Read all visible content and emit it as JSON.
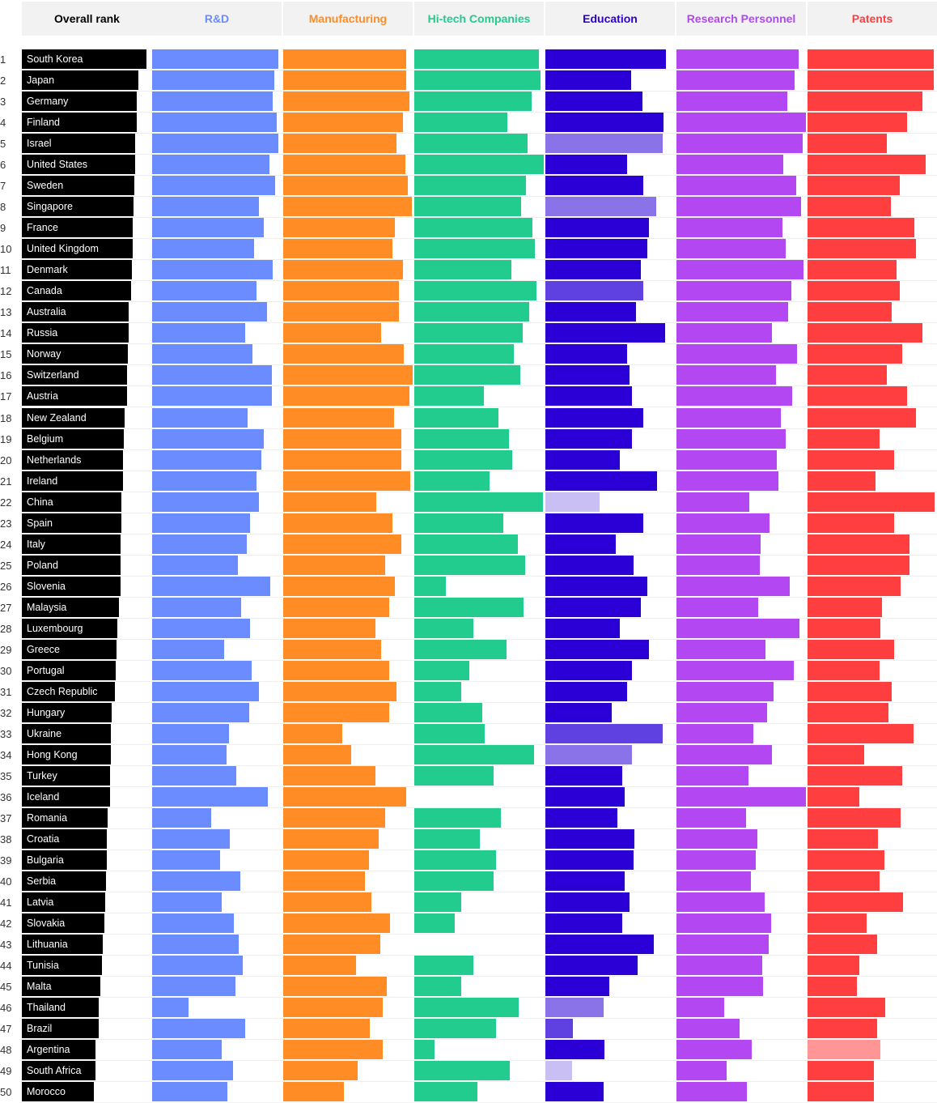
{
  "chart_data": {
    "type": "bar",
    "headers": [
      {
        "label": "Overall rank",
        "color": "#000000"
      },
      {
        "label": "R&D",
        "color": "#6a8cff"
      },
      {
        "label": "Manufacturing",
        "color": "#ff8c25"
      },
      {
        "label": "Hi-tech Companies",
        "color": "#22cc8f"
      },
      {
        "label": "Education",
        "color": "#2a00d6"
      },
      {
        "label": "Research Personnel",
        "color": "#b347f2"
      },
      {
        "label": "Patents",
        "color": "#ff3f3f"
      }
    ],
    "overall": [
      {
        "rank": "1",
        "country": "South Korea",
        "value": 96.3
      },
      {
        "rank": "2",
        "country": "Japan",
        "value": 90.2
      },
      {
        "rank": "3",
        "country": "Germany",
        "value": 88.6
      },
      {
        "rank": "4",
        "country": "Finland",
        "value": 88.6
      },
      {
        "rank": "5",
        "country": "Israel",
        "value": 87.6
      },
      {
        "rank": "6",
        "country": "United States",
        "value": 87.4
      },
      {
        "rank": "7",
        "country": "Sweden",
        "value": 86.9
      },
      {
        "rank": "8",
        "country": "Singapore",
        "value": 86.2
      },
      {
        "rank": "9",
        "country": "France",
        "value": 85.7
      },
      {
        "rank": "10",
        "country": "United Kingdom",
        "value": 85.6
      },
      {
        "rank": "11",
        "country": "Denmark",
        "value": 85.1
      },
      {
        "rank": "12",
        "country": "Canada",
        "value": 84.5
      },
      {
        "rank": "13",
        "country": "Australia",
        "value": 82.6
      },
      {
        "rank": "14",
        "country": "Russia",
        "value": 82.4
      },
      {
        "rank": "15",
        "country": "Norway",
        "value": 81.7
      },
      {
        "rank": "16",
        "country": "Switzerland",
        "value": 81.4
      },
      {
        "rank": "17",
        "country": "Austria",
        "value": 81.1
      },
      {
        "rank": "18",
        "country": "New Zealand",
        "value": 79.3
      },
      {
        "rank": "19",
        "country": "Belgium",
        "value": 78.6
      },
      {
        "rank": "20",
        "country": "Netherlands",
        "value": 78.3
      },
      {
        "rank": "21",
        "country": "Ireland",
        "value": 78.2
      },
      {
        "rank": "22",
        "country": "China",
        "value": 77.2
      },
      {
        "rank": "23",
        "country": "Spain",
        "value": 76.9
      },
      {
        "rank": "24",
        "country": "Italy",
        "value": 76.6
      },
      {
        "rank": "25",
        "country": "Poland",
        "value": 76.3
      },
      {
        "rank": "26",
        "country": "Slovenia",
        "value": 76.2
      },
      {
        "rank": "27",
        "country": "Malaysia",
        "value": 74.8
      },
      {
        "rank": "28",
        "country": "Luxembourg",
        "value": 73.5
      },
      {
        "rank": "29",
        "country": "Greece",
        "value": 73.3
      },
      {
        "rank": "30",
        "country": "Portugal",
        "value": 72.4
      },
      {
        "rank": "31",
        "country": "Czech Republic",
        "value": 72.1
      },
      {
        "rank": "32",
        "country": "Hungary",
        "value": 69.6
      },
      {
        "rank": "33",
        "country": "Ukraine",
        "value": 68.9
      },
      {
        "rank": "34",
        "country": "Hong Kong",
        "value": 68.7
      },
      {
        "rank": "35",
        "country": "Turkey",
        "value": 68.0
      },
      {
        "rank": "36",
        "country": "Iceland",
        "value": 67.9
      },
      {
        "rank": "37",
        "country": "Romania",
        "value": 66.5
      },
      {
        "rank": "38",
        "country": "Croatia",
        "value": 65.9
      },
      {
        "rank": "39",
        "country": "Bulgaria",
        "value": 65.4
      },
      {
        "rank": "40",
        "country": "Serbia",
        "value": 65.2
      },
      {
        "rank": "41",
        "country": "Latvia",
        "value": 64.6
      },
      {
        "rank": "42",
        "country": "Slovakia",
        "value": 63.5
      },
      {
        "rank": "43",
        "country": "Lithuania",
        "value": 62.6
      },
      {
        "rank": "44",
        "country": "Tunisia",
        "value": 61.9
      },
      {
        "rank": "45",
        "country": "Malta",
        "value": 60.5
      },
      {
        "rank": "46",
        "country": "Thailand",
        "value": 59.7
      },
      {
        "rank": "47",
        "country": "Brazil",
        "value": 59.3
      },
      {
        "rank": "48",
        "country": "Argentina",
        "value": 56.9
      },
      {
        "rank": "49",
        "country": "South Africa",
        "value": 56.6
      },
      {
        "rank": "50",
        "country": "Morocco",
        "value": 55.9
      }
    ],
    "series": [
      {
        "name": "R&D",
        "color": "#6a8cff",
        "values": [
          100,
          97,
          96,
          99,
          100,
          93,
          98,
          85,
          89,
          81,
          96,
          83,
          91,
          74,
          80,
          95,
          95,
          76,
          89,
          87,
          83,
          85,
          78,
          75,
          68,
          94,
          71,
          78,
          57,
          79,
          85,
          77,
          61,
          59,
          67,
          92,
          47,
          62,
          54,
          70,
          55,
          65,
          69,
          72,
          66,
          29,
          74,
          55,
          64,
          60
        ]
      },
      {
        "name": "Manufacturing",
        "color": "#ff8c25",
        "values": [
          98,
          98,
          100,
          95,
          90,
          97,
          99,
          102,
          89,
          87,
          95,
          92,
          92,
          78,
          96,
          103,
          100,
          88,
          94,
          94,
          101,
          74,
          87,
          94,
          81,
          89,
          84,
          73,
          78,
          84,
          90,
          84,
          47,
          54,
          73,
          98,
          81,
          76,
          68,
          65,
          70,
          85,
          77,
          58,
          82,
          79,
          69,
          79,
          59,
          48
        ]
      },
      {
        "name": "Hi-tech Companies",
        "color": "#22cc8f",
        "values": [
          99,
          100,
          93,
          74,
          90,
          103,
          89,
          85,
          94,
          96,
          77,
          97,
          91,
          86,
          79,
          84,
          55,
          67,
          75,
          78,
          60,
          102,
          71,
          82,
          88,
          25,
          87,
          47,
          73,
          44,
          37,
          54,
          56,
          95,
          63,
          0,
          69,
          52,
          65,
          63,
          37,
          32,
          0,
          47,
          37,
          83,
          65,
          16,
          76,
          50
        ]
      },
      {
        "name": "Education",
        "color": "#2a00d6",
        "values": [
          96,
          68,
          77,
          94,
          93,
          65,
          78,
          88,
          82,
          81,
          76,
          78,
          72,
          95,
          65,
          67,
          69,
          78,
          69,
          59,
          89,
          43,
          78,
          56,
          70,
          81,
          76,
          59,
          82,
          69,
          65,
          53,
          93,
          69,
          61,
          63,
          57,
          71,
          70,
          63,
          67,
          61,
          86,
          73,
          51,
          46,
          22,
          47,
          21,
          46
        ],
        "lighter": [
          false,
          false,
          false,
          false,
          true,
          false,
          false,
          true,
          false,
          false,
          false,
          "mid",
          false,
          false,
          false,
          false,
          false,
          false,
          false,
          false,
          false,
          "pale",
          false,
          false,
          false,
          false,
          false,
          false,
          false,
          false,
          false,
          false,
          "mid",
          true,
          false,
          false,
          false,
          false,
          false,
          false,
          false,
          false,
          false,
          false,
          false,
          true,
          "mid",
          false,
          "pale",
          false
        ]
      },
      {
        "name": "Research Personnel",
        "color": "#b347f2",
        "values": [
          97,
          94,
          88,
          103,
          100,
          85,
          95,
          99,
          84,
          87,
          101,
          91,
          89,
          76,
          96,
          79,
          92,
          83,
          87,
          80,
          81,
          58,
          74,
          67,
          66,
          90,
          65,
          98,
          71,
          93,
          77,
          72,
          61,
          76,
          57,
          103,
          55,
          64,
          63,
          59,
          70,
          75,
          73,
          68,
          69,
          38,
          50,
          60,
          40,
          56
        ]
      },
      {
        "name": "Patents",
        "color": "#ff3f3f",
        "values": [
          100,
          100,
          91,
          79,
          63,
          94,
          73,
          66,
          85,
          86,
          71,
          73,
          67,
          91,
          75,
          63,
          79,
          86,
          57,
          69,
          54,
          101,
          69,
          81,
          81,
          74,
          59,
          58,
          69,
          57,
          67,
          64,
          84,
          45,
          75,
          41,
          74,
          56,
          61,
          57,
          76,
          47,
          55,
          41,
          39,
          62,
          55,
          58,
          53,
          53
        ],
        "lighter": [
          false,
          false,
          false,
          false,
          false,
          false,
          false,
          false,
          false,
          false,
          false,
          false,
          false,
          false,
          false,
          false,
          false,
          false,
          false,
          false,
          false,
          false,
          false,
          false,
          false,
          false,
          false,
          false,
          false,
          false,
          false,
          false,
          false,
          false,
          false,
          false,
          false,
          false,
          false,
          false,
          false,
          false,
          false,
          false,
          false,
          false,
          false,
          true,
          false,
          false
        ]
      }
    ]
  }
}
